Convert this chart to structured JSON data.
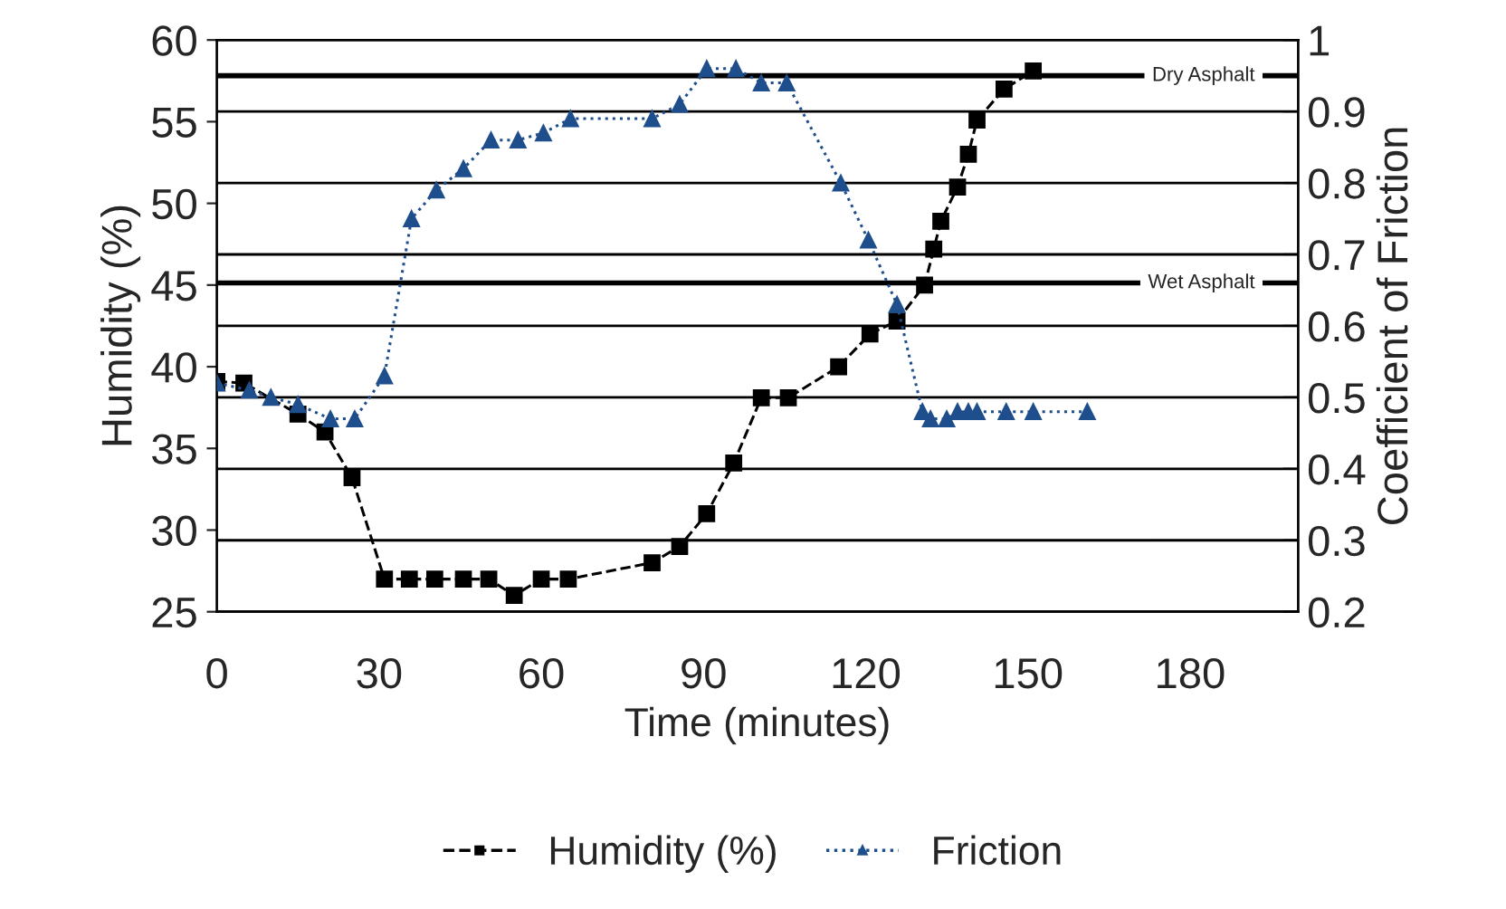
{
  "chart_data": {
    "type": "line",
    "xlabel": "Time (minutes)",
    "ylabel": "Humidity (%)",
    "y2label": "Coefficient of Friction",
    "xlim": [
      0,
      200
    ],
    "xticks": [
      0,
      30,
      60,
      90,
      120,
      150,
      180
    ],
    "ylim": [
      25,
      60
    ],
    "yticks": [
      25,
      30,
      35,
      40,
      45,
      50,
      55,
      60
    ],
    "y2lim": [
      0.2,
      1
    ],
    "y2ticks": [
      0.2,
      0.3,
      0.4,
      0.5,
      0.6,
      0.7,
      0.8,
      0.9,
      1
    ],
    "grid": "y",
    "legend": "bottom",
    "ref_lines": [
      {
        "axis": "y2",
        "value": 0.95,
        "label": "Dry Asphalt",
        "color": "#000000",
        "line_style": "solid"
      },
      {
        "axis": "y2",
        "value": 0.66,
        "label": "Wet Asphalt",
        "color": "#000000",
        "line_style": "solid"
      }
    ],
    "series": [
      {
        "name": "Humidity (%)",
        "color": "#000000",
        "marker": "square",
        "line_style": "dashed",
        "x": [
          0,
          5,
          15,
          20,
          25,
          31,
          35.6,
          40.3,
          45.6,
          50.3,
          55,
          60,
          65,
          80.5,
          85.6,
          90.6,
          95.6,
          100.7,
          105.7,
          115,
          120.8,
          125.8,
          130.9,
          132.6,
          133.9,
          137,
          139,
          140.6,
          145.6,
          151
        ],
        "values": [
          39.1,
          39,
          37.1,
          36,
          33.2,
          27,
          27,
          27,
          27,
          27,
          26,
          27,
          27,
          28,
          29,
          31,
          34.1,
          38.1,
          38.1,
          40,
          42,
          42.8,
          45,
          47.2,
          48.9,
          51,
          53,
          55.1,
          57,
          58.1
        ]
      },
      {
        "name": "Friction",
        "color": "#1f4e8c",
        "marker": "triangle",
        "line_style": "dotted",
        "axis": "y2",
        "x": [
          0,
          6,
          10,
          15,
          21,
          25.5,
          31,
          36,
          40.6,
          45.6,
          50.7,
          55.7,
          60.4,
          65.4,
          80.5,
          85.6,
          90.6,
          96,
          100.7,
          105.4,
          115.4,
          120.5,
          125.8,
          130.5,
          132,
          135,
          137,
          139,
          140.6,
          146,
          151,
          161
        ],
        "values": [
          0.52,
          0.51,
          0.5,
          0.49,
          0.47,
          0.47,
          0.53,
          0.75,
          0.79,
          0.82,
          0.86,
          0.86,
          0.87,
          0.89,
          0.89,
          0.91,
          0.96,
          0.96,
          0.94,
          0.94,
          0.8,
          0.72,
          0.63,
          0.48,
          0.47,
          0.47,
          0.48,
          0.48,
          0.48,
          0.48,
          0.48,
          0.48
        ]
      }
    ]
  }
}
